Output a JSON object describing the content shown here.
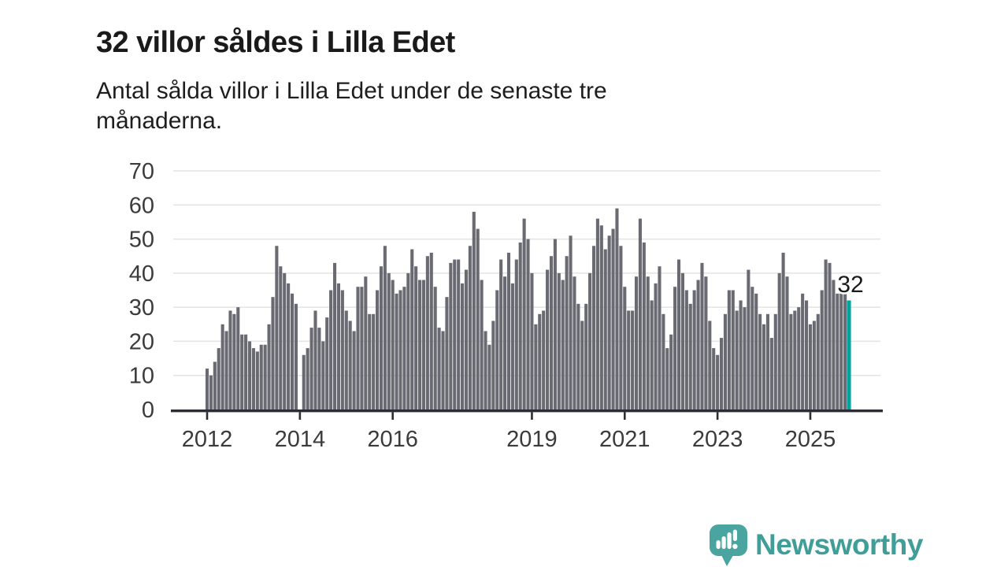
{
  "header": {
    "title": "32 villor såldes i Lilla Edet",
    "subtitle_line1": "Antal sålda villor i Lilla Edet under de senaste tre",
    "subtitle_line2": "månaderna."
  },
  "chart_data": {
    "type": "bar",
    "title": "32 villor såldes i Lilla Edet",
    "subtitle": "Antal sålda villor i Lilla Edet under de senaste tre månaderna.",
    "x_start": "2012-01",
    "x_interval": "monthly",
    "values": [
      12,
      10,
      14,
      18,
      25,
      23,
      29,
      28,
      30,
      22,
      22,
      20,
      18,
      17,
      19,
      19,
      25,
      33,
      48,
      42,
      40,
      37,
      34,
      31,
      0,
      16,
      18,
      24,
      29,
      24,
      20,
      27,
      35,
      43,
      37,
      35,
      29,
      26,
      23,
      36,
      36,
      39,
      28,
      28,
      35,
      42,
      48,
      40,
      38,
      34,
      35,
      36,
      40,
      47,
      42,
      38,
      38,
      45,
      46,
      36,
      24,
      23,
      33,
      43,
      44,
      44,
      37,
      41,
      48,
      58,
      53,
      38,
      23,
      19,
      26,
      35,
      44,
      39,
      46,
      37,
      44,
      49,
      56,
      50,
      40,
      25,
      28,
      29,
      41,
      45,
      50,
      40,
      38,
      45,
      51,
      39,
      31,
      26,
      31,
      40,
      48,
      56,
      54,
      47,
      51,
      53,
      59,
      48,
      36,
      29,
      29,
      39,
      56,
      49,
      39,
      32,
      37,
      42,
      28,
      18,
      22,
      36,
      44,
      40,
      35,
      31,
      35,
      38,
      43,
      39,
      26,
      18,
      16,
      21,
      28,
      35,
      35,
      29,
      32,
      30,
      41,
      36,
      34,
      28,
      25,
      28,
      21,
      28,
      40,
      46,
      39,
      28,
      29,
      30,
      34,
      32,
      25,
      26,
      28,
      35,
      44,
      43,
      38,
      34,
      35,
      34,
      32
    ],
    "highlight_last": true,
    "highlight_label": "32",
    "highlight_value": 32,
    "bar_color": "#6a6a73",
    "highlight_color": "#00a49d",
    "y_ticks": [
      0,
      10,
      20,
      30,
      40,
      50,
      60,
      70
    ],
    "ylim": [
      0,
      70
    ],
    "x_tick_years": [
      2012,
      2014,
      2016,
      2019,
      2021,
      2023,
      2025
    ],
    "grid": true,
    "legend": "none"
  },
  "footer": {
    "brand": "Newsworthy"
  },
  "colors": {
    "bar": "#6a6a73",
    "highlight_teal": "#00a49d",
    "logo_teal": "#4aa5a0",
    "brand_text_teal": "#3f9e98",
    "axis_text": "#3b3b3b",
    "gridline": "#e3e3e3",
    "axis_line": "#2c2c34",
    "title_text": "#1a1a1a"
  }
}
